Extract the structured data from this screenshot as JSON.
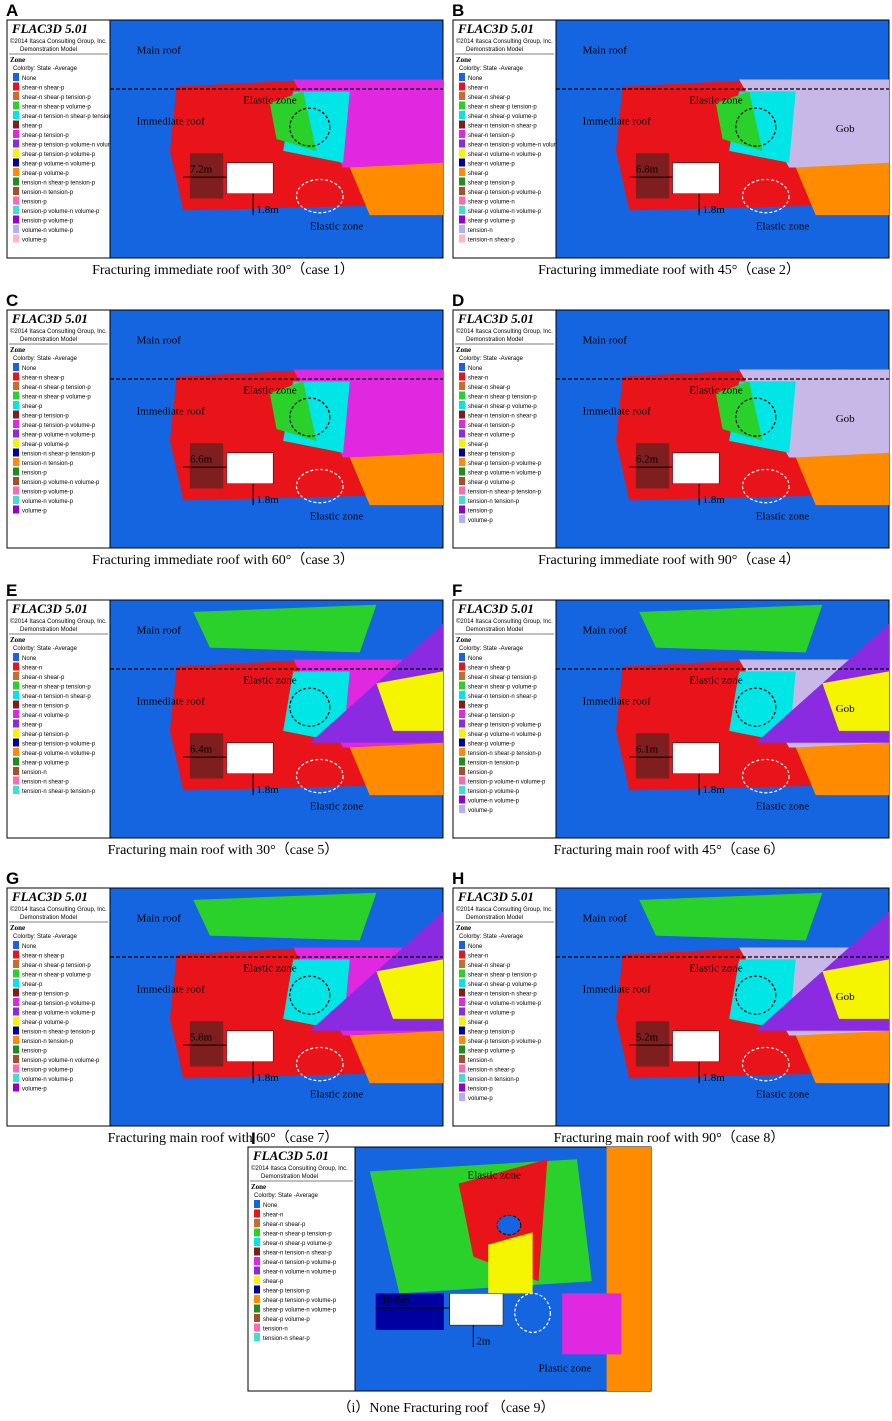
{
  "panels": [
    {
      "label": "A",
      "software": "FLAC3D 5.01",
      "copyright": "©2014 Itasca Consulting Group, Inc.",
      "model": "Demonstration Model",
      "zone": "Zone",
      "colorby": "Colorby: State  -Average",
      "legend": [
        "None",
        "shear-n shear-p",
        "shear-n shear-p tension-p",
        "shear-n shear-p volume-p",
        "shear-n tension-n shear-p tension-p",
        "shear-p",
        "shear-p tension-p",
        "shear-p tension-p volume-n volume-p",
        "shear-p tension-p volume-p",
        "shear-p volume-n volume-p",
        "shear-p volume-p",
        "tension-n shear-p tension-p",
        "tension-n tension-p",
        "tension-p",
        "tension-p volume-n volume-p",
        "tension-p volume-p",
        "volume-n volume-p",
        "volume-p"
      ],
      "annotations": {
        "main_roof": "Main roof",
        "immediate_roof": "Immediate roof",
        "elastic_zone_upper": "Elastic zone",
        "elastic_zone_lower": "Elastic zone",
        "width": "7.2m",
        "height": "1.8m"
      },
      "caption": "Fracturing immediate roof with 30°（case 1）"
    },
    {
      "label": "B",
      "software": "FLAC3D 5.01",
      "copyright": "©2014 Itasca Consulting Group, Inc.",
      "model": "Demonstration Model",
      "zone": "Zone",
      "colorby": "Colorby: State  -Average",
      "legend": [
        "None",
        "shear-n",
        "shear-n shear-p",
        "shear-n shear-p tension-p",
        "shear-n shear-p volume-p",
        "shear-n tension-n shear-p",
        "shear-n tension-p",
        "shear-n tension-p volume-n volume-p",
        "shear-n volume-n volume-p",
        "shear-n volume-p",
        "shear-p",
        "shear-p tension-p",
        "shear-p tension-p volume-p",
        "shear-p volume-n",
        "shear-p volume-n volume-p",
        "shear-p volume-p",
        "tension-n",
        "tension-n shear-p"
      ],
      "annotations": {
        "main_roof": "Main roof",
        "immediate_roof": "Immediate roof",
        "elastic_zone_upper": "Elastic zone",
        "elastic_zone_lower": "Elastic zone",
        "width": "6.8m",
        "height": "1.8m",
        "gob": "Gob"
      },
      "caption": "Fracturing immediate roof with 45°（case 2）"
    },
    {
      "label": "C",
      "software": "FLAC3D 5.01",
      "copyright": "©2014 Itasca Consulting Group, Inc.",
      "model": "Demonstration Model",
      "zone": "Zone",
      "colorby": "Colorby: State  -Average",
      "legend": [
        "None",
        "shear-n shear-p",
        "shear-n shear-p tension-p",
        "shear-n shear-p volume-p",
        "shear-p",
        "shear-p tension-p",
        "shear-p tension-p volume-p",
        "shear-p volume-n volume-p",
        "shear-p volume-p",
        "tension-n shear-p tension-p",
        "tension-n tension-p",
        "tension-p",
        "tension-p volume-n volume-p",
        "tension-p volume-p",
        "volume-n volume-p",
        "volume-p"
      ],
      "annotations": {
        "main_roof": "Main roof",
        "immediate_roof": "Immediate roof",
        "elastic_zone_upper": "Elastic zone",
        "elastic_zone_lower": "Elastic zone",
        "width": "6.6m",
        "height": "1.8m"
      },
      "caption": "Fracturing immediate roof with 60°（case 3）"
    },
    {
      "label": "D",
      "software": "FLAC3D 5.01",
      "copyright": "©2014 Itasca Consulting Group, Inc.",
      "model": "Demonstration Model",
      "zone": "Zone",
      "colorby": "Colorby: State  -Average",
      "legend": [
        "None",
        "shear-n",
        "shear-n shear-p",
        "shear-n shear-p tension-p",
        "shear-n shear-p volume-p",
        "shear-n tension-n shear-p",
        "shear-n tension-p",
        "shear-n volume-p",
        "shear-p",
        "shear-p tension-p",
        "shear-p tension-p volume-p",
        "shear-p volume-n volume-p",
        "shear-p volume-p",
        "tension-n shear-p tension-p",
        "tension-n tension-p",
        "tension-p",
        "volume-p"
      ],
      "annotations": {
        "main_roof": "Main roof",
        "immediate_roof": "Immediate roof",
        "elastic_zone_upper": "Elastic zone",
        "elastic_zone_lower": "Elastic zone",
        "width": "6.2m",
        "height": "1.8m",
        "gob": "Gob"
      },
      "caption": "Fracturing immediate roof with 90°（case 4）"
    },
    {
      "label": "E",
      "software": "FLAC3D 5.01",
      "copyright": "©2014 Itasca Consulting Group, Inc.",
      "model": "Demonstration Model",
      "zone": "Zone",
      "colorby": "Colorby: State  -Average",
      "legend": [
        "None",
        "shear-n",
        "shear-n shear-p",
        "shear-n shear-p tension-p",
        "shear-n tension-n shear-p",
        "shear-n tension-p",
        "shear-n volume-p",
        "shear-p",
        "shear-p tension-p",
        "shear-p tension-p volume-p",
        "shear-p volume-n volume-p",
        "shear-p volume-p",
        "tension-n",
        "tension-n shear-p",
        "tension-n shear-p tension-p"
      ],
      "annotations": {
        "main_roof": "Main roof",
        "immediate_roof": "Immediate roof",
        "elastic_zone_upper": "Elastic zone",
        "elastic_zone_lower": "Elastic zone",
        "width": "6.4m",
        "height": "1.8m"
      },
      "caption": "Fracturing main roof with 30°（case 5）"
    },
    {
      "label": "F",
      "software": "FLAC3D 5.01",
      "copyright": "©2014 Itasca Consulting Group, Inc.",
      "model": "Demonstration Model",
      "zone": "Zone",
      "colorby": "Colorby: State  -Average",
      "legend": [
        "None",
        "shear-n shear-p",
        "shear-n shear-p tension-p",
        "shear-n shear-p volume-p",
        "shear-n tension-n shear-p",
        "shear-p",
        "shear-p tension-p",
        "shear-p tension-p volume-p",
        "shear-p volume-n volume-p",
        "shear-p volume-p",
        "tension-n shear-p tension-p",
        "tension-n tension-p",
        "tension-p",
        "tension-p volume-n volume-p",
        "tension-p volume-p",
        "volume-n volume-p",
        "volume-p"
      ],
      "annotations": {
        "main_roof": "Main roof",
        "immediate_roof": "Immediate roof",
        "elastic_zone_upper": "Elastic zone",
        "elastic_zone_lower": "Elastic zone",
        "width": "6.1m",
        "height": "1.8m",
        "gob": "Gob"
      },
      "caption": "Fracturing main roof with 45°（case 6）"
    },
    {
      "label": "G",
      "software": "FLAC3D 5.01",
      "copyright": "©2014 Itasca Consulting Group, Inc.",
      "model": "Demonstration Model",
      "zone": "Zone",
      "colorby": "Colorby: State  -Average",
      "legend": [
        "None",
        "shear-n shear-p",
        "shear-n shear-p tension-p",
        "shear-n shear-p volume-p",
        "shear-p",
        "shear-p tension-p",
        "shear-p tension-p volume-p",
        "shear-p volume-n volume-p",
        "shear-p volume-p",
        "tension-n shear-p tension-p",
        "tension-n tension-p",
        "tension-p",
        "tension-p volume-n volume-p",
        "tension-p volume-p",
        "volume-n volume-p",
        "volume-p"
      ],
      "annotations": {
        "main_roof": "Main roof",
        "immediate_roof": "Immediate roof",
        "elastic_zone_upper": "Elastic zone",
        "elastic_zone_lower": "Elastic zone",
        "width": "5.8m",
        "height": "1.8m"
      },
      "caption": "Fracturing main roof with 60°（case 7）"
    },
    {
      "label": "H",
      "software": "FLAC3D 5.01",
      "copyright": "©2014 Itasca Consulting Group, Inc.",
      "model": "Demonstration Model",
      "zone": "Zone",
      "colorby": "Colorby: State  -Average",
      "legend": [
        "None",
        "shear-n",
        "shear-n shear-p",
        "shear-n shear-p tension-p",
        "shear-n shear-p volume-p",
        "shear-n tension-n shear-p",
        "shear-n volume-n volume-p",
        "shear-n volume-p",
        "shear-p",
        "shear-p tension-p",
        "shear-p tension-p volume-p",
        "shear-p volume-p",
        "tension-n",
        "tension-n shear-p",
        "tension-n tension-p",
        "tension-p",
        "volume-p"
      ],
      "annotations": {
        "main_roof": "Main roof",
        "immediate_roof": "Immediate roof",
        "elastic_zone_upper": "Elastic zone",
        "elastic_zone_lower": "Elastic zone",
        "width": "5.2m",
        "height": "1.8m",
        "gob": "Gob"
      },
      "caption": "Fracturing main roof with 90°（case 8）"
    },
    {
      "label": "I",
      "software": "FLAC3D 5.01",
      "copyright": "©2014 Itasca Consulting Group, Inc.",
      "model": "Demonstration Model",
      "zone": "Zone",
      "colorby": "Colorby: State  -Average",
      "legend": [
        "None",
        "shear-n",
        "shear-n shear-p",
        "shear-n shear-p tension-p",
        "shear-n shear-p volume-p",
        "shear-n tension-n shear-p",
        "shear-n tension-p volume-p",
        "shear-n volume-n volume-p",
        "shear-p",
        "shear-p tension-p",
        "shear-p tension-p volume-p",
        "shear-p volume-n volume-p",
        "shear-p volume-p",
        "tension-n",
        "tension-n shear-p"
      ],
      "annotations": {
        "elastic_zone_upper": "Elastic zone",
        "plastic_zone": "Plastic zone",
        "width": "10.6m",
        "height": "2m"
      },
      "caption": "（i）None Fracturing roof （case 9）"
    }
  ]
}
